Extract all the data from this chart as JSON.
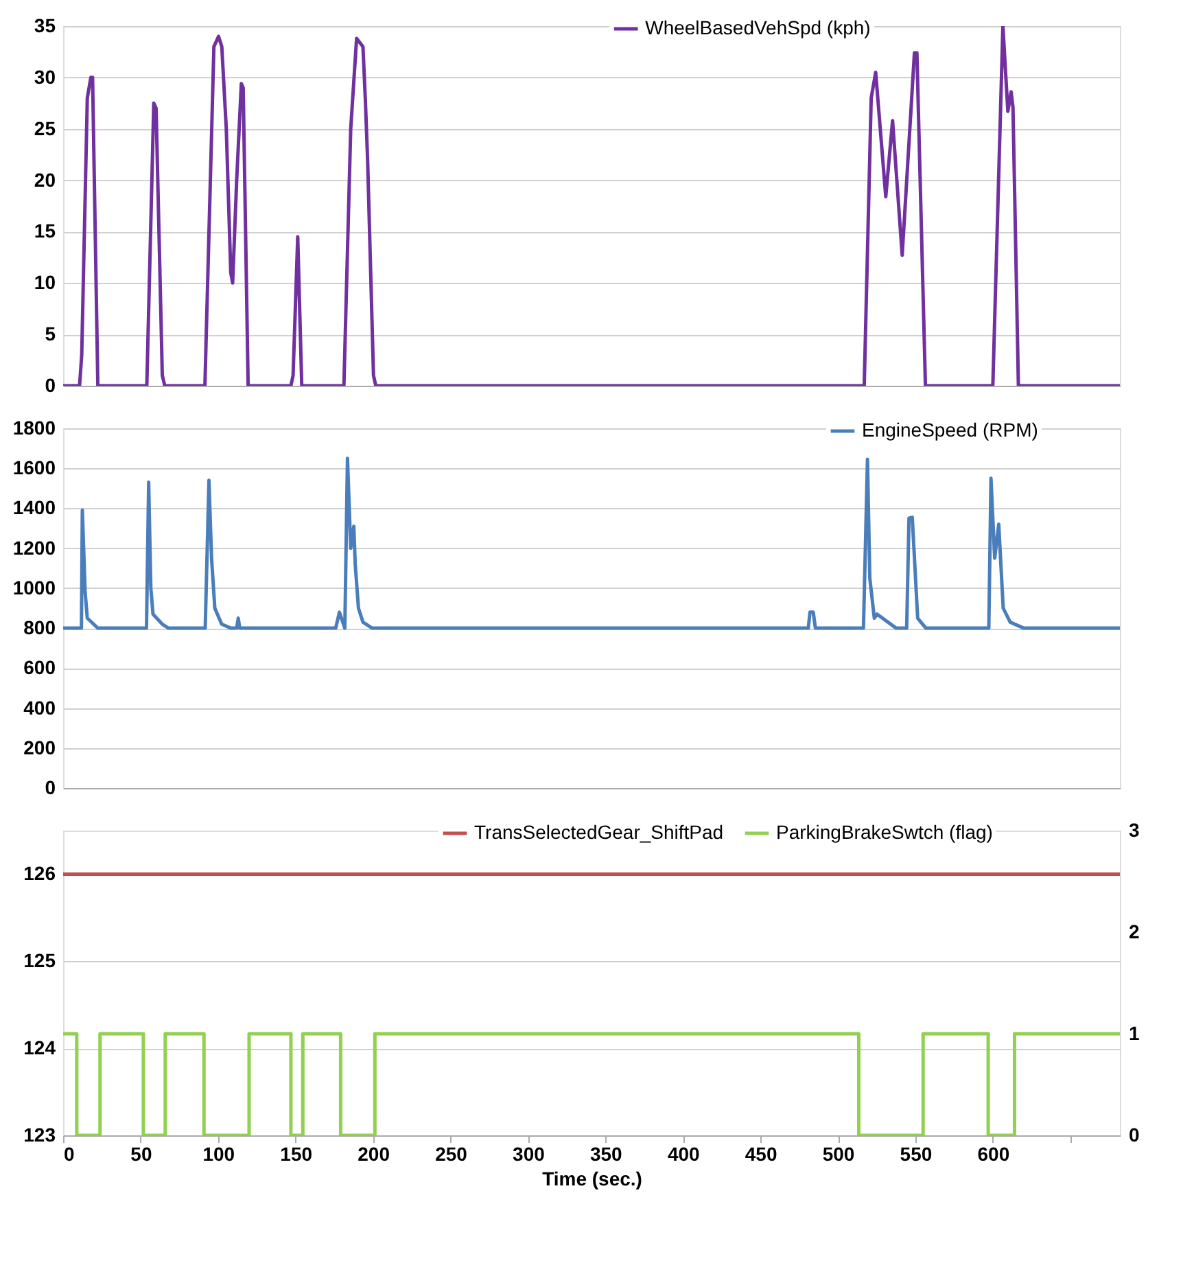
{
  "chart_data": [
    {
      "type": "line",
      "xlim": [
        0,
        682
      ],
      "ylim": [
        0,
        35
      ],
      "yticks": [
        0,
        5,
        10,
        15,
        20,
        25,
        30,
        35
      ],
      "grid": "y",
      "legend": "top",
      "tick_labels": "y",
      "series": [
        {
          "name": "WheelBasedVehSpd (kph)",
          "color": "#7030a0",
          "x": [
            0,
            10.6,
            12,
            15.6,
            17.9,
            19,
            22.4,
            54,
            58.5,
            60,
            64,
            65.6,
            91.5,
            97.3,
            100.3,
            102.4,
            105.3,
            108.2,
            109.4,
            112,
            115,
            116.2,
            119.4,
            147,
            148.4,
            151.4,
            154,
            181.2,
            185.6,
            189.4,
            193.5,
            195,
            196.5,
            200.3,
            201.8,
            517,
            521.5,
            524.4,
            530.9,
            535.3,
            541.5,
            549.4,
            551,
            556.5,
            600,
            606.5,
            609.7,
            611.8,
            613,
            616.5,
            682
          ],
          "values": [
            0,
            0,
            3,
            28,
            30,
            30,
            0,
            0,
            27.5,
            27,
            1,
            0,
            0,
            33,
            34,
            33,
            25,
            11,
            10,
            20,
            29.4,
            29,
            0,
            0,
            1,
            14.5,
            0,
            0,
            25,
            33.8,
            33,
            28,
            22,
            1,
            0,
            0,
            28,
            30.5,
            18.4,
            25.8,
            12.7,
            32.4,
            32.4,
            0,
            0,
            35,
            26.7,
            28.6,
            27.1,
            0,
            0
          ]
        }
      ]
    },
    {
      "type": "line",
      "xlim": [
        0,
        682
      ],
      "ylim": [
        0,
        1800
      ],
      "yticks": [
        0,
        200,
        400,
        600,
        800,
        1000,
        1200,
        1400,
        1600,
        1800
      ],
      "grid": "y",
      "legend": "top right",
      "tick_labels": "y",
      "series": [
        {
          "name": "EngineSpeed (RPM)",
          "color": "#4a7ebb",
          "x": [
            0,
            11.8,
            12.4,
            14.2,
            15.6,
            22.4,
            53.8,
            55.2,
            56.6,
            58,
            64,
            68,
            91.7,
            94.1,
            95.8,
            97.9,
            102.3,
            108.3,
            112,
            113,
            114,
            175.9,
            178.3,
            181.8,
            183.5,
            185.6,
            187.6,
            188.5,
            190.6,
            193.5,
            199.4,
            480.9,
            482,
            484.1,
            485.5,
            516.5,
            519.1,
            520.6,
            523.5,
            525.3,
            537.6,
            544.4,
            545.9,
            548,
            551.5,
            556.8,
            597.4,
            598.8,
            601.2,
            603.8,
            606.7,
            611.2,
            620,
            682
          ],
          "values": [
            800,
            800,
            1390,
            980,
            850,
            800,
            800,
            1530,
            1000,
            870,
            820,
            800,
            800,
            1540,
            1150,
            900,
            820,
            800,
            800,
            850,
            800,
            800,
            880,
            800,
            1650,
            1200,
            1310,
            1120,
            900,
            830,
            800,
            800,
            880,
            880,
            800,
            800,
            1645,
            1050,
            850,
            870,
            800,
            800,
            1350,
            1355,
            850,
            800,
            800,
            1550,
            1150,
            1320,
            900,
            830,
            800,
            800
          ]
        }
      ]
    },
    {
      "type": "line",
      "xlim": [
        0,
        682
      ],
      "xticks": [
        0,
        50,
        100,
        150,
        200,
        250,
        300,
        350,
        400,
        450,
        500,
        550,
        600,
        {
          "value": 650,
          "label": null
        }
      ],
      "xlabel": "Time (sec.)",
      "ylim": [
        123,
        126.5
      ],
      "yticks": [
        123,
        124,
        125,
        126
      ],
      "y2lim": [
        0,
        3
      ],
      "y2ticks": [
        0,
        1,
        2,
        3
      ],
      "grid": "y",
      "legend": "top",
      "series": [
        {
          "name": "TransSelectedGear_ShiftPad",
          "color": "#c0504d",
          "x": [
            0,
            682
          ],
          "values": [
            126,
            126
          ]
        },
        {
          "name": "ParkingBrakeSwtch (flag)",
          "color": "#92d050",
          "type": "step",
          "axis": "y2",
          "x": [
            0,
            8.8,
            23.8,
            51.8,
            65.9,
            90.9,
            120,
            147,
            154.7,
            179.1,
            201.2,
            513.5,
            555,
            597,
            614,
            682
          ],
          "values": [
            1,
            0,
            1,
            0,
            1,
            0,
            1,
            0,
            1,
            0,
            1,
            0,
            1,
            0,
            1,
            1
          ]
        }
      ]
    }
  ]
}
